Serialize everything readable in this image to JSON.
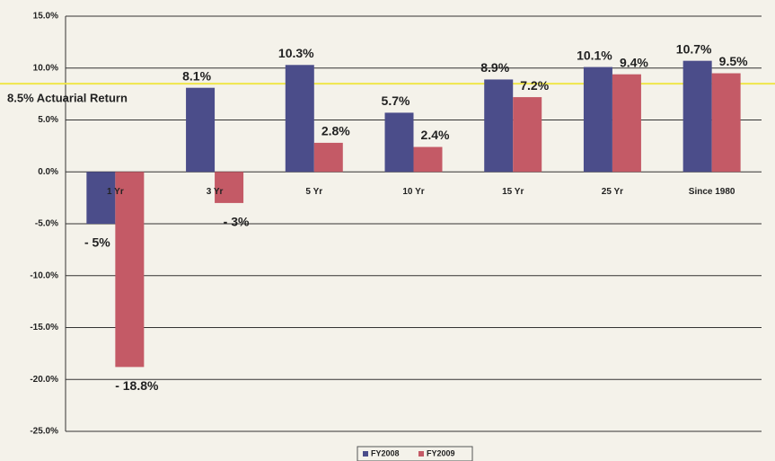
{
  "chart_data": {
    "type": "bar",
    "categories": [
      "1 Yr",
      "3 Yr",
      "5 Yr",
      "10 Yr",
      "15 Yr",
      "25 Yr",
      "Since 1980"
    ],
    "series": [
      {
        "name": "FY2008",
        "color": "#4b4d8a",
        "values": [
          -5,
          8.1,
          10.3,
          5.7,
          8.9,
          10.1,
          10.7
        ],
        "value_labels": [
          "- 5%",
          "8.1%",
          "10.3%",
          "5.7%",
          "8.9%",
          "10.1%",
          "10.7%"
        ]
      },
      {
        "name": "FY2009",
        "color": "#c45a66",
        "values": [
          -18.8,
          -3,
          2.8,
          2.4,
          7.2,
          9.4,
          9.5
        ],
        "value_labels": [
          "- 18.8%",
          "- 3%",
          "2.8%",
          "2.4%",
          "7.2%",
          "9.4%",
          "9.5%"
        ]
      }
    ],
    "ylim": [
      -25,
      15
    ],
    "yticks": [
      {
        "value": -25,
        "label": "-25.0%"
      },
      {
        "value": -20,
        "label": "-20.0%"
      },
      {
        "value": -15,
        "label": "-15.0%"
      },
      {
        "value": -10,
        "label": "-10.0%"
      },
      {
        "value": -5,
        "label": "-5.0%"
      },
      {
        "value": 0,
        "label": "0.0%"
      },
      {
        "value": 5,
        "label": "5.0%"
      },
      {
        "value": 10,
        "label": "10.0%"
      },
      {
        "value": 15,
        "label": "15.0%"
      }
    ],
    "grid": true,
    "legend": "bottom",
    "reference_line": {
      "value": 8.5,
      "label": "8.5% Actuarial Return",
      "color": "#f0e64a"
    }
  }
}
